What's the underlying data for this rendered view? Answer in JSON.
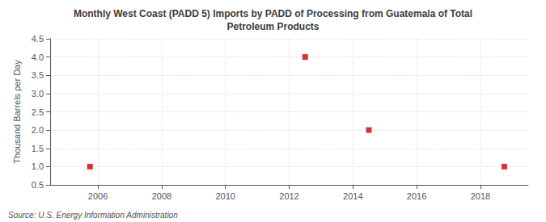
{
  "chart_data": {
    "type": "scatter",
    "title": "Monthly West Coast (PADD 5) Imports by PADD of Processing from Guatemala of Total\nPetroleum Products",
    "ylabel": "Thousand Barrels per Day",
    "source": "Source: U.S. Energy Information Administration",
    "x": [
      2005.75,
      2012.5,
      2014.5,
      2018.75
    ],
    "values": [
      1.0,
      4.0,
      2.0,
      1.0
    ],
    "color": "#cc0000",
    "marker": "square",
    "xlim": [
      2004.5,
      2019.5
    ],
    "ylim": [
      0.5,
      4.5
    ],
    "xticks": [
      2006,
      2008,
      2010,
      2012,
      2014,
      2016,
      2018
    ],
    "yticks": [
      0.5,
      {
        "value": 1,
        "label": "1.0"
      },
      1.5,
      {
        "value": 2,
        "label": "2.0"
      },
      2.5,
      {
        "value": 3,
        "label": "3.0"
      },
      3.5,
      {
        "value": 4,
        "label": "4.0"
      },
      4.5
    ],
    "grid": true
  }
}
